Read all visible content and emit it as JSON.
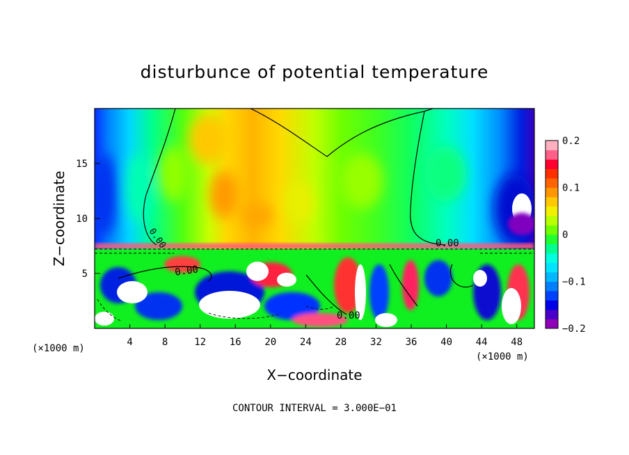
{
  "chart_data": {
    "type": "heatmap",
    "title": "disturbunce of potential temperature",
    "xlabel": "X−coordinate",
    "ylabel": "Z−coordinate",
    "x_unit_left": "(×1000 m)",
    "x_unit_right": "(×1000 m)",
    "xlim": [
      0,
      50
    ],
    "ylim": [
      0,
      20
    ],
    "x_ticks": [
      4,
      8,
      12,
      16,
      20,
      24,
      28,
      32,
      36,
      40,
      44,
      48
    ],
    "y_ticks": [
      5,
      10,
      15
    ],
    "colorbar": {
      "range": [
        -0.2,
        0.2
      ],
      "tick_labels": [
        "0.2",
        "0.1",
        "0",
        "−0.1",
        "−0.2"
      ],
      "tick_values": [
        0.2,
        0.1,
        0,
        -0.1,
        -0.2
      ],
      "colors": [
        "#9000b8",
        "#4a00c8",
        "#0000e8",
        "#0040ff",
        "#0080ff",
        "#00b8ff",
        "#00e4ff",
        "#00ffe0",
        "#00ff90",
        "#20ff30",
        "#70ff00",
        "#b8ff00",
        "#f0f000",
        "#ffc800",
        "#ff9600",
        "#ff6400",
        "#ff3000",
        "#ff0030",
        "#ff6088",
        "#ffb0c0"
      ]
    },
    "contour_labels": [
      "0.00",
      "0.00",
      "0.00",
      "0.00"
    ],
    "footer": "CONTOUR INTERVAL = 3.000E−01"
  }
}
